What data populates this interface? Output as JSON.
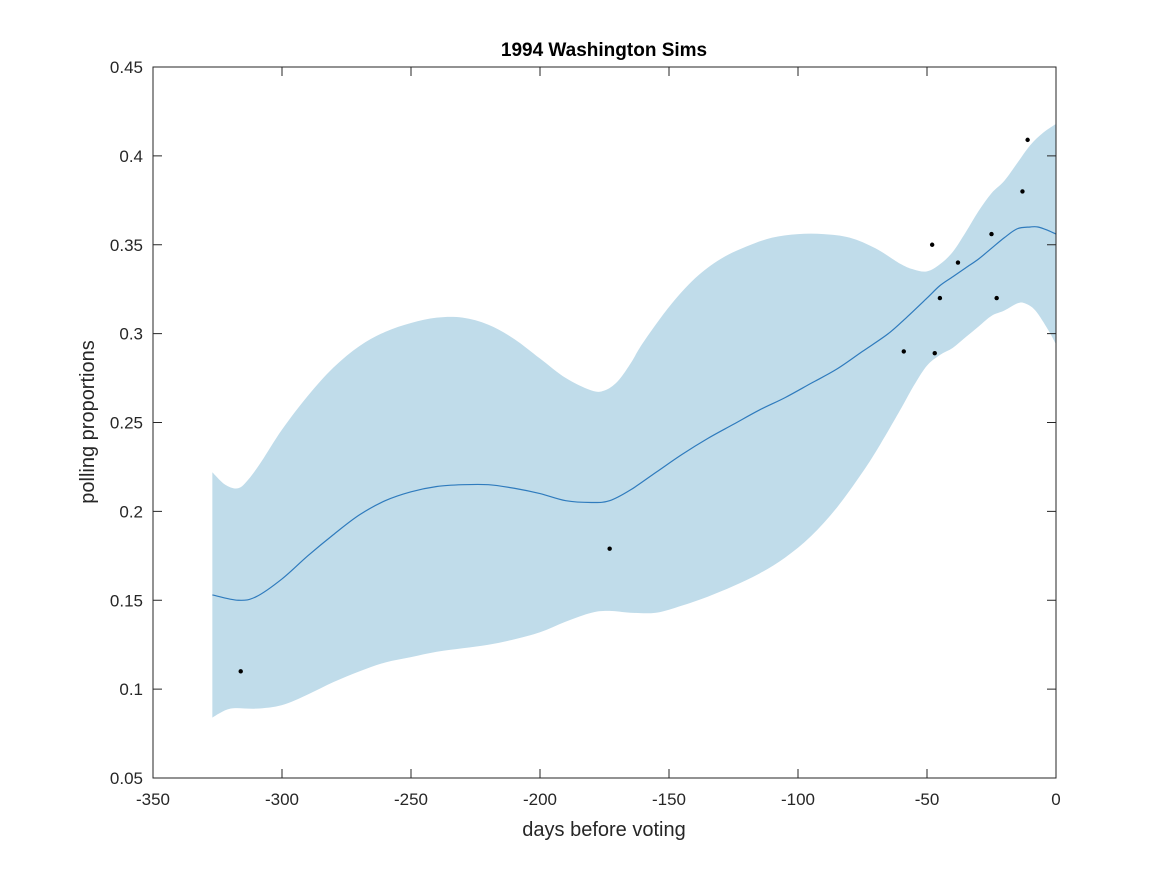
{
  "chart_data": {
    "type": "line",
    "title": "1994 Washington Sims",
    "xlabel": "days before voting",
    "ylabel": "polling proportions",
    "xlim": [
      -350,
      0
    ],
    "ylim": [
      0.05,
      0.45
    ],
    "xticks": [
      -350,
      -300,
      -250,
      -200,
      -150,
      -100,
      -50,
      0
    ],
    "xtick_labels": [
      "-350",
      "-300",
      "-250",
      "-200",
      "-150",
      "-100",
      "-50",
      "0"
    ],
    "yticks": [
      0.05,
      0.1,
      0.15,
      0.2,
      0.25,
      0.3,
      0.35,
      0.4,
      0.45
    ],
    "ytick_labels": [
      "0.05",
      "0.1",
      "0.15",
      "0.2",
      "0.25",
      "0.3",
      "0.35",
      "0.4",
      "0.45"
    ],
    "grid": false,
    "colors": {
      "band": "#c0dcea",
      "mean": "#2f7bbd",
      "points": "#000000",
      "axes": "#262626"
    },
    "mean_line": {
      "x": [
        -327,
        -317,
        -310,
        -300,
        -290,
        -280,
        -270,
        -260,
        -250,
        -240,
        -230,
        -220,
        -210,
        -200,
        -190,
        -180,
        -173,
        -165,
        -155,
        -145,
        -135,
        -125,
        -115,
        -105,
        -95,
        -85,
        -75,
        -65,
        -58,
        -50,
        -45,
        -40,
        -35,
        -30,
        -25,
        -20,
        -15,
        -10,
        -7,
        -3,
        0
      ],
      "y": [
        0.153,
        0.15,
        0.152,
        0.162,
        0.175,
        0.187,
        0.198,
        0.206,
        0.211,
        0.214,
        0.215,
        0.215,
        0.213,
        0.21,
        0.206,
        0.205,
        0.206,
        0.212,
        0.222,
        0.232,
        0.241,
        0.249,
        0.257,
        0.264,
        0.272,
        0.28,
        0.29,
        0.3,
        0.309,
        0.32,
        0.327,
        0.332,
        0.337,
        0.342,
        0.348,
        0.354,
        0.359,
        0.36,
        0.36,
        0.358,
        0.356
      ]
    },
    "band_upper": {
      "x": [
        -327,
        -322,
        -317,
        -313,
        -308,
        -300,
        -290,
        -280,
        -270,
        -260,
        -250,
        -240,
        -230,
        -220,
        -210,
        -200,
        -190,
        -180,
        -175,
        -170,
        -165,
        -160,
        -150,
        -140,
        -130,
        -120,
        -110,
        -100,
        -90,
        -80,
        -70,
        -60,
        -55,
        -50,
        -45,
        -40,
        -35,
        -30,
        -25,
        -20,
        -15,
        -10,
        -5,
        0
      ],
      "y": [
        0.222,
        0.215,
        0.213,
        0.218,
        0.228,
        0.246,
        0.265,
        0.281,
        0.293,
        0.301,
        0.306,
        0.309,
        0.309,
        0.305,
        0.297,
        0.286,
        0.275,
        0.268,
        0.268,
        0.273,
        0.283,
        0.295,
        0.315,
        0.331,
        0.342,
        0.349,
        0.354,
        0.356,
        0.356,
        0.354,
        0.348,
        0.339,
        0.336,
        0.335,
        0.339,
        0.346,
        0.357,
        0.369,
        0.379,
        0.386,
        0.396,
        0.406,
        0.413,
        0.418
      ]
    },
    "band_lower": {
      "x": [
        -327,
        -320,
        -310,
        -300,
        -290,
        -280,
        -270,
        -260,
        -250,
        -240,
        -230,
        -220,
        -210,
        -200,
        -190,
        -180,
        -173,
        -165,
        -155,
        -145,
        -135,
        -125,
        -115,
        -105,
        -95,
        -85,
        -75,
        -68,
        -60,
        -55,
        -50,
        -45,
        -40,
        -35,
        -30,
        -25,
        -20,
        -15,
        -12,
        -8,
        -3,
        0
      ],
      "y": [
        0.084,
        0.089,
        0.089,
        0.091,
        0.097,
        0.104,
        0.11,
        0.115,
        0.118,
        0.121,
        0.123,
        0.125,
        0.128,
        0.132,
        0.138,
        0.143,
        0.144,
        0.143,
        0.143,
        0.147,
        0.152,
        0.158,
        0.165,
        0.174,
        0.186,
        0.202,
        0.222,
        0.238,
        0.258,
        0.271,
        0.282,
        0.288,
        0.292,
        0.298,
        0.304,
        0.31,
        0.313,
        0.317,
        0.317,
        0.313,
        0.302,
        0.294
      ]
    },
    "points": {
      "x": [
        -316,
        -173,
        -59,
        -48,
        -47,
        -45,
        -38,
        -25,
        -23,
        -13,
        -11
      ],
      "y": [
        0.11,
        0.179,
        0.29,
        0.35,
        0.289,
        0.32,
        0.34,
        0.356,
        0.32,
        0.38,
        0.409
      ]
    }
  }
}
